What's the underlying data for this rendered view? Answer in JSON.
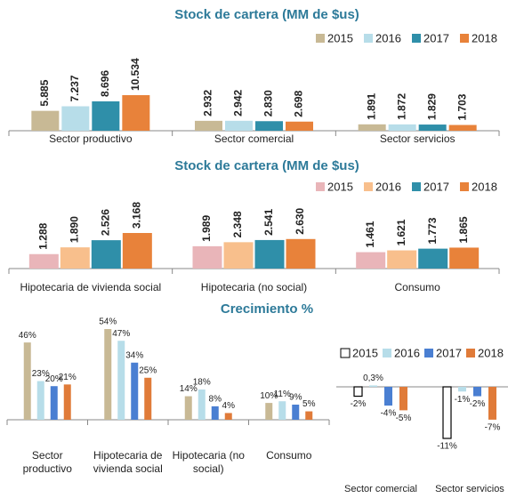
{
  "chart_data": [
    {
      "type": "bar",
      "title": "Stock de cartera (MM de $us)",
      "categories": [
        "Sector productivo",
        "Sector comercial",
        "Sector servicios"
      ],
      "series": [
        {
          "name": "2015",
          "color": "#c8b995",
          "values": [
            5885,
            2932,
            1891
          ],
          "value_labels": [
            "5.885",
            "2.932",
            "1.891"
          ]
        },
        {
          "name": "2016",
          "color": "#b7dde9",
          "values": [
            7237,
            2942,
            1872
          ],
          "value_labels": [
            "7.237",
            "2.942",
            "1.872"
          ]
        },
        {
          "name": "2017",
          "color": "#2f8fa9",
          "values": [
            8696,
            2830,
            1829
          ],
          "value_labels": [
            "8.696",
            "2.830",
            "1.829"
          ]
        },
        {
          "name": "2018",
          "color": "#e8823a",
          "values": [
            10534,
            2698,
            1703
          ],
          "value_labels": [
            "10.534",
            "2.698",
            "1.703"
          ]
        }
      ]
    },
    {
      "type": "bar",
      "title": "Stock de cartera (MM de $us)",
      "categories": [
        "Hipotecaria de vivienda social",
        "Hipotecaria (no social)",
        "Consumo"
      ],
      "series": [
        {
          "name": "2015",
          "color": "#e9b5b9",
          "values": [
            1288,
            1989,
            1461
          ],
          "value_labels": [
            "1.288",
            "1.989",
            "1.461"
          ]
        },
        {
          "name": "2016",
          "color": "#f8bf8c",
          "values": [
            1890,
            2348,
            1621
          ],
          "value_labels": [
            "1.890",
            "2.348",
            "1.621"
          ]
        },
        {
          "name": "2017",
          "color": "#2f8fa9",
          "values": [
            2526,
            2541,
            1773
          ],
          "value_labels": [
            "2.526",
            "2.541",
            "1.773"
          ]
        },
        {
          "name": "2018",
          "color": "#e8823a",
          "values": [
            3168,
            2630,
            1865
          ],
          "value_labels": [
            "3.168",
            "2.630",
            "1.865"
          ]
        }
      ]
    },
    {
      "type": "bar",
      "title": "Crecimiento %",
      "categories": [
        "Sector productivo",
        "Hipotecaria de vivienda social",
        "Hipotecaria (no social)",
        "Consumo"
      ],
      "series": [
        {
          "name": "2015",
          "color": "#c8b995",
          "values": [
            46,
            54,
            14,
            10
          ],
          "value_labels": [
            "46%",
            "54%",
            "14%",
            "10%"
          ]
        },
        {
          "name": "2016",
          "color": "#b7dde9",
          "values": [
            23,
            47,
            18,
            11
          ],
          "value_labels": [
            "23%",
            "47%",
            "18%",
            "11%"
          ]
        },
        {
          "name": "2017",
          "color": "#4a7fd2",
          "values": [
            20,
            34,
            8,
            9
          ],
          "value_labels": [
            "20%",
            "34%",
            "8%",
            "9%"
          ]
        },
        {
          "name": "2018",
          "color": "#e07b39",
          "values": [
            21,
            25,
            4,
            5
          ],
          "value_labels": [
            "21%",
            "25%",
            "4%",
            "5%"
          ]
        }
      ]
    },
    {
      "type": "bar",
      "categories": [
        "Sector comercial",
        "Sector servicios"
      ],
      "series": [
        {
          "name": "2015",
          "color": "#ffffff",
          "edgecolor": "#000000",
          "values": [
            -2,
            -11
          ],
          "value_labels": [
            "-2%",
            "-11%"
          ]
        },
        {
          "name": "2016",
          "color": "#b7dde9",
          "values": [
            0.3,
            -1
          ],
          "value_labels": [
            "0,3%",
            "-1%"
          ]
        },
        {
          "name": "2017",
          "color": "#4a7fd2",
          "values": [
            -4,
            -2
          ],
          "value_labels": [
            "-4%",
            "-2%"
          ]
        },
        {
          "name": "2018",
          "color": "#e07b39",
          "values": [
            -5,
            -7
          ],
          "value_labels": [
            "-5%",
            "-7%"
          ]
        }
      ]
    }
  ]
}
